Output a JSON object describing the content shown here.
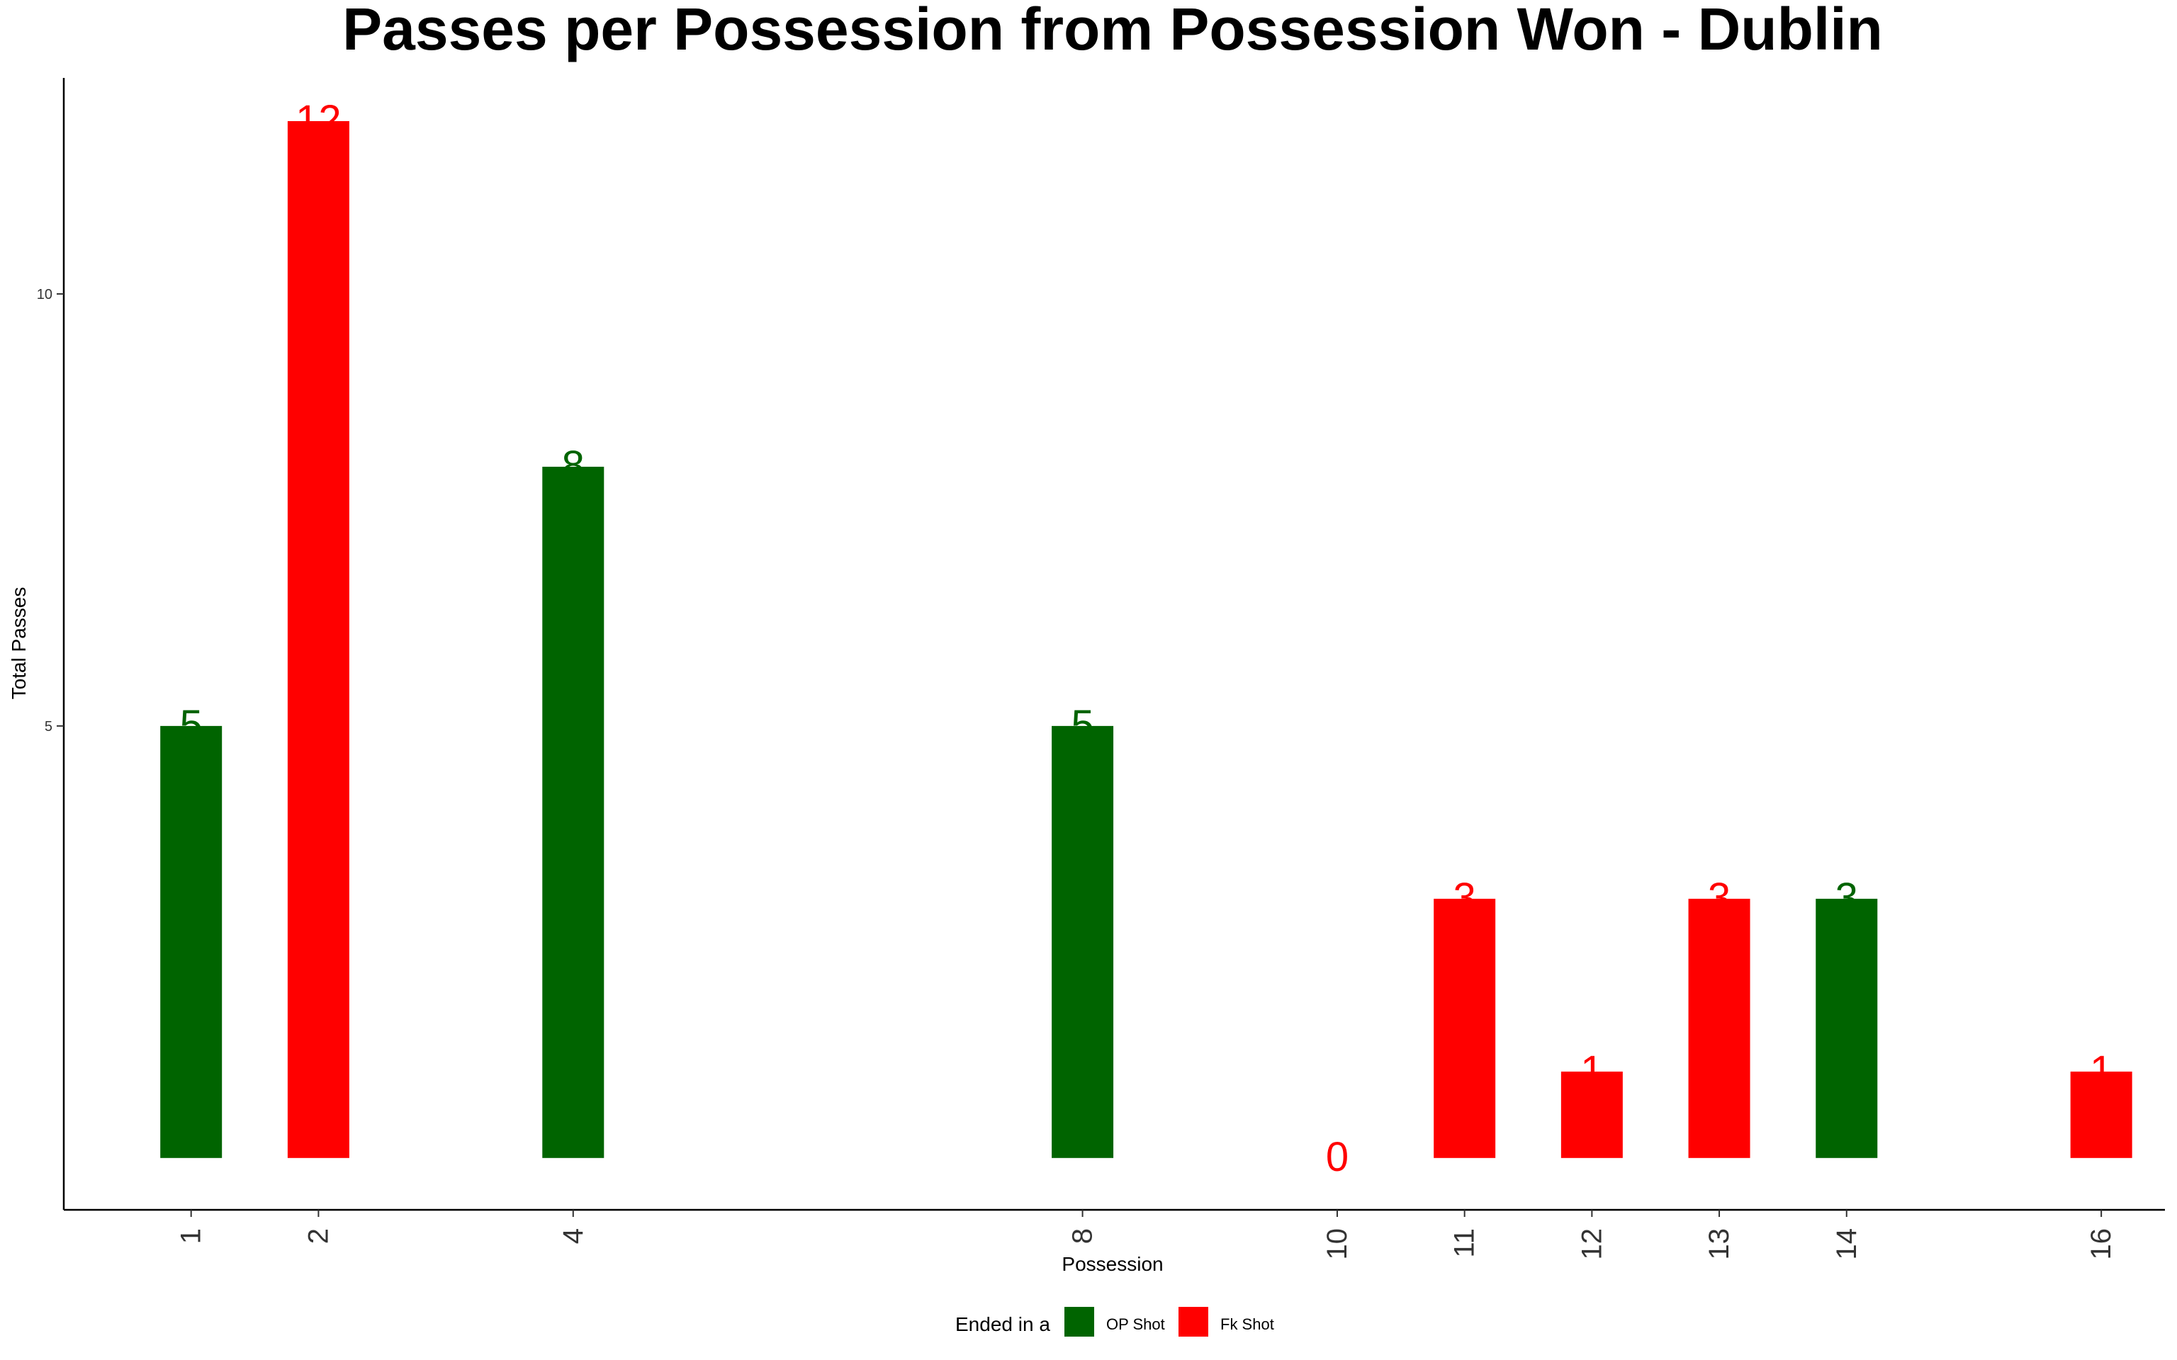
{
  "chart_data": {
    "type": "bar",
    "title": "Passes per Possession from Possession Won - Dublin",
    "xlabel": "Possession",
    "ylabel": "Total Passes",
    "x_ticks": [
      1,
      2,
      4,
      8,
      10,
      11,
      12,
      13,
      14,
      16
    ],
    "y_ticks": [
      5,
      10
    ],
    "xlim": [
      0,
      16.5
    ],
    "ylim": [
      -0.6,
      12.5
    ],
    "grid": false,
    "legend": {
      "title": "Ended in a",
      "position": "bottom",
      "entries": [
        {
          "name": "OP Shot",
          "color": "#006400"
        },
        {
          "name": "Fk Shot",
          "color": "#ff0000"
        }
      ]
    },
    "bars": [
      {
        "possession": 1,
        "value": 5,
        "ended_in": "OP Shot"
      },
      {
        "possession": 2,
        "value": 12,
        "ended_in": "Fk Shot"
      },
      {
        "possession": 4,
        "value": 8,
        "ended_in": "OP Shot"
      },
      {
        "possession": 8,
        "value": 5,
        "ended_in": "OP Shot"
      },
      {
        "possession": 10,
        "value": 0,
        "ended_in": "Fk Shot"
      },
      {
        "possession": 11,
        "value": 3,
        "ended_in": "Fk Shot"
      },
      {
        "possession": 12,
        "value": 1,
        "ended_in": "Fk Shot"
      },
      {
        "possession": 13,
        "value": 3,
        "ended_in": "Fk Shot"
      },
      {
        "possession": 14,
        "value": 3,
        "ended_in": "OP Shot"
      },
      {
        "possession": 16,
        "value": 1,
        "ended_in": "Fk Shot"
      }
    ]
  }
}
